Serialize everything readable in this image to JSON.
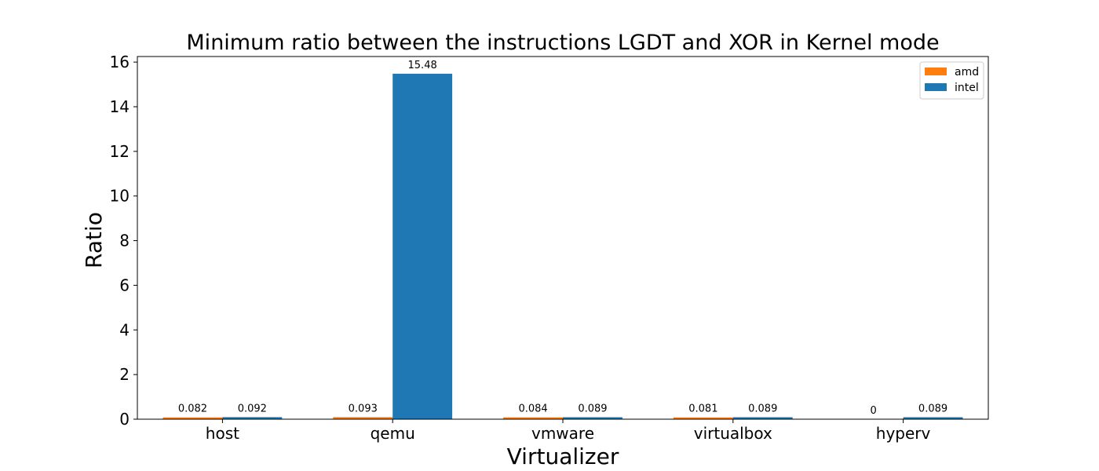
{
  "chart_data": {
    "type": "bar",
    "title": "Minimum ratio between the instructions LGDT and XOR in Kernel mode",
    "xlabel": "Virtualizer",
    "ylabel": "Ratio",
    "categories": [
      "host",
      "qemu",
      "vmware",
      "virtualbox",
      "hyperv"
    ],
    "series": [
      {
        "name": "amd",
        "color": "#ff7f0e",
        "values": [
          0.082,
          0.093,
          0.084,
          0.081,
          0
        ],
        "labels": [
          "0.082",
          "0.093",
          "0.084",
          "0.081",
          "0"
        ]
      },
      {
        "name": "intel",
        "color": "#1f77b4",
        "values": [
          0.092,
          15.48,
          0.089,
          0.089,
          0.089
        ],
        "labels": [
          "0.092",
          "15.48",
          "0.089",
          "0.089",
          "0.089"
        ]
      }
    ],
    "ylim": [
      0,
      16.25
    ],
    "yticks": [
      0,
      2,
      4,
      6,
      8,
      10,
      12,
      14,
      16
    ],
    "grid": false,
    "legend_position": "top-right"
  }
}
